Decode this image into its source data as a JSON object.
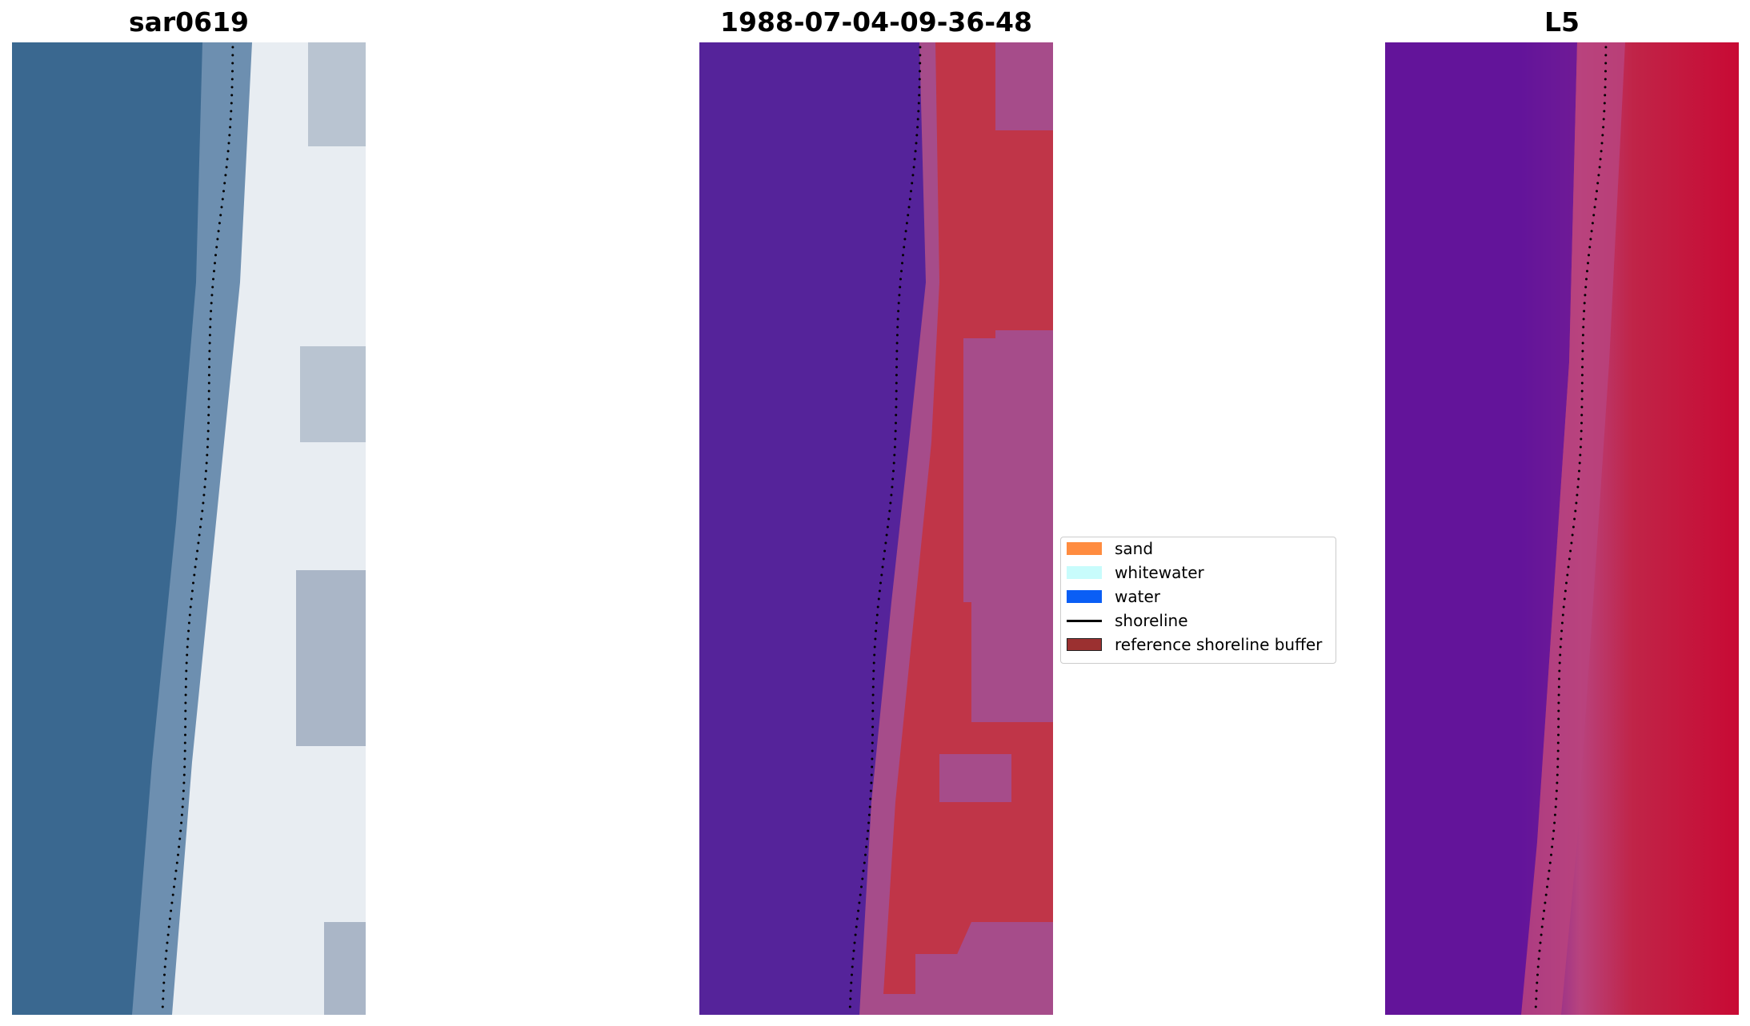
{
  "panels": [
    {
      "id": "rgb",
      "title": "sar0619",
      "colors": {
        "water": "#3a6890",
        "edge": "#6d8fb0",
        "beach": "#e8edf2",
        "shade": "#9aa8bb"
      }
    },
    {
      "id": "classification",
      "title": "1988-07-04-09-36-48",
      "colors": {
        "water": "#55239a",
        "land": "#c03548",
        "buffer": "#a64c8a"
      }
    },
    {
      "id": "index",
      "title": "L5",
      "colors": {
        "low": "#63149a",
        "mid": "#b8437e",
        "high": "#c80a34"
      }
    }
  ],
  "legend": {
    "items": [
      {
        "label": "sand",
        "kind": "patch",
        "color": "#ff8c40"
      },
      {
        "label": "whitewater",
        "kind": "patch",
        "color": "#c8fcfc"
      },
      {
        "label": "water",
        "kind": "patch",
        "color": "#0a5ef5"
      },
      {
        "label": "shoreline",
        "kind": "line",
        "color": "#000000"
      },
      {
        "label": "reference shoreline buffer",
        "kind": "patch",
        "color": "#9b3030"
      }
    ]
  }
}
